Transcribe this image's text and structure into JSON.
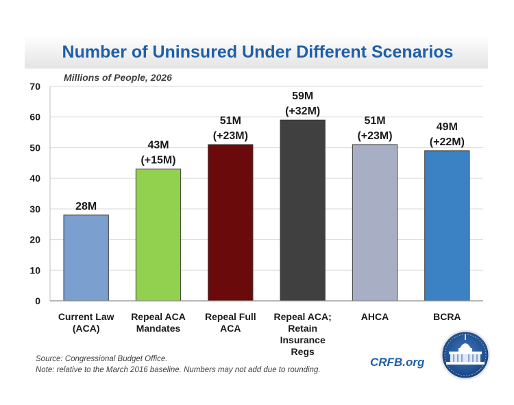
{
  "chart_data": {
    "type": "bar",
    "title": "Number of Uninsured Under Different Scenarios",
    "subtitle": "Millions of People, 2026",
    "xlabel": "",
    "ylabel": "Millions of People, 2026",
    "ylim": [
      0,
      70
    ],
    "yticks": [
      0,
      10,
      20,
      30,
      40,
      50,
      60,
      70
    ],
    "grid": true,
    "categories": [
      [
        "Current Law",
        "(ACA)"
      ],
      [
        "Repeal ACA",
        "Mandates"
      ],
      [
        "Repeal Full",
        "ACA"
      ],
      [
        "Repeal ACA;",
        "Retain",
        "Insurance",
        "Regs"
      ],
      [
        "AHCA"
      ],
      [
        "BCRA"
      ]
    ],
    "values": [
      28,
      43,
      51,
      59,
      51,
      49
    ],
    "data_labels": [
      [
        "28M"
      ],
      [
        "43M",
        "(+15M)"
      ],
      [
        "51M",
        "(+23M)"
      ],
      [
        "59M",
        "(+32M)"
      ],
      [
        "51M",
        "(+23M)"
      ],
      [
        "49M",
        "(+22M)"
      ]
    ],
    "colors": [
      "#7b9fcf",
      "#92d050",
      "#6b0a0a",
      "#404040",
      "#a8aec4",
      "#3b82c4"
    ]
  },
  "footer": {
    "source": "Source: Congressional Budget Office.",
    "note": "Note: relative to the March 2016 baseline. Numbers may not add due to rounding.",
    "brand": "CRFB.org",
    "brand_color": "#1f5fa8"
  }
}
